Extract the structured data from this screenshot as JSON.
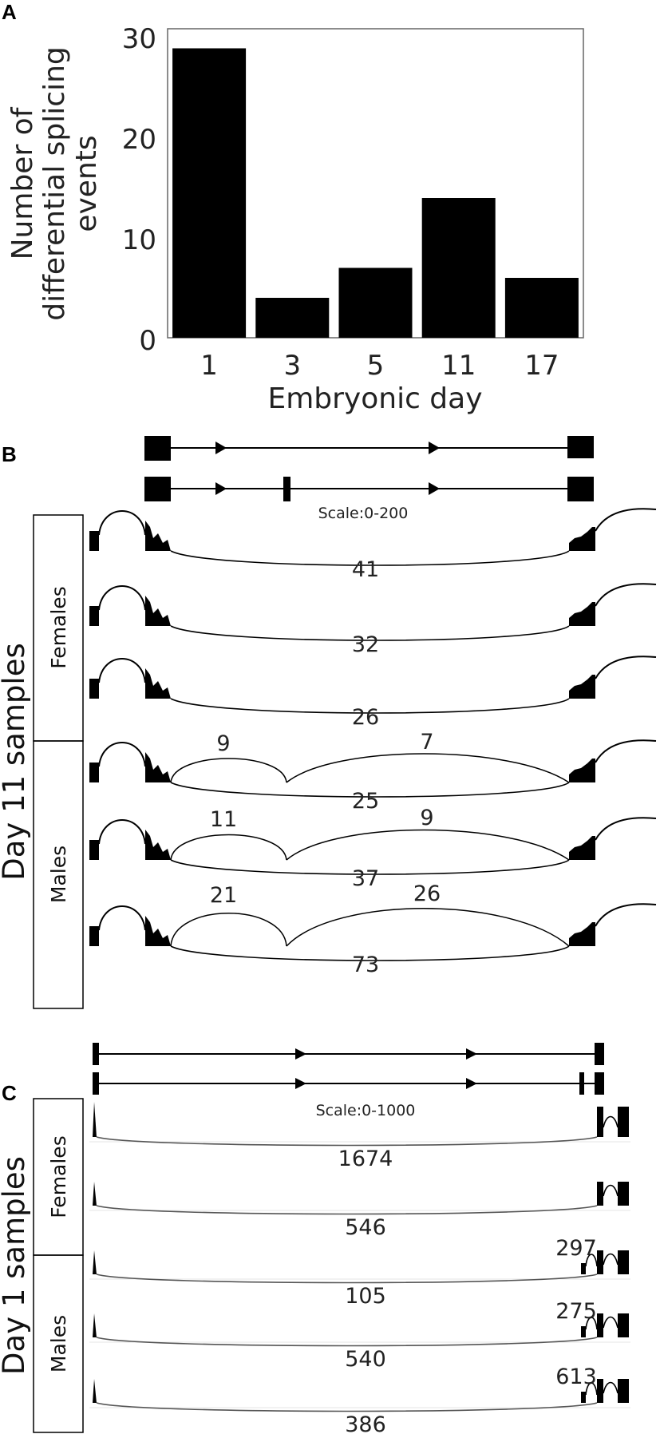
{
  "panel_labels": {
    "a": "A",
    "b": "B",
    "c": "C"
  },
  "chart_data": [
    {
      "type": "bar",
      "categories": [
        "1",
        "3",
        "5",
        "11",
        "17"
      ],
      "values": [
        29,
        4,
        7,
        14,
        6
      ],
      "xlabel": "Embryonic day",
      "ylabel_lines": [
        "Number of",
        "differential splicing",
        "events"
      ],
      "ylim": [
        0,
        30
      ],
      "yticks": [
        "0",
        "10",
        "20",
        "30"
      ],
      "bar_color": "#000000",
      "grid": false
    }
  ],
  "panel_b": {
    "scale_label": "Scale:0-200",
    "group_label": "Day 11 samples",
    "females_label": "Females",
    "males_label": "Males",
    "tracks": [
      {
        "long": "41",
        "left": "",
        "right": ""
      },
      {
        "long": "32",
        "left": "",
        "right": ""
      },
      {
        "long": "26",
        "left": "",
        "right": ""
      },
      {
        "long": "25",
        "left": "9",
        "right": "7"
      },
      {
        "long": "37",
        "left": "11",
        "right": "9"
      },
      {
        "long": "73",
        "left": "21",
        "right": "26"
      }
    ]
  },
  "panel_c": {
    "scale_label": "Scale:0-1000",
    "group_label": "Day 1 samples",
    "females_label": "Females",
    "males_label": "Males",
    "tracks": [
      {
        "long": "1674",
        "extra": ""
      },
      {
        "long": "546",
        "extra": ""
      },
      {
        "long": "105",
        "extra": "297"
      },
      {
        "long": "540",
        "extra": "275"
      },
      {
        "long": "386",
        "extra": "613"
      }
    ]
  }
}
